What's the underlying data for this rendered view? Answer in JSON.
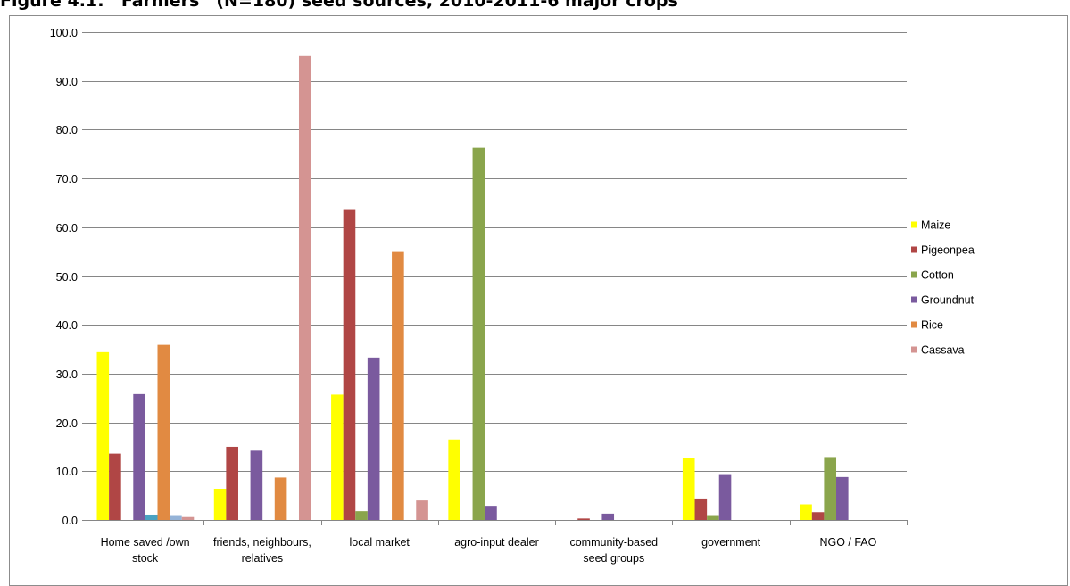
{
  "figure": {
    "title": "Figure 4.1: “Farmers” (N=180) seed sources, 2010-2011-6 major crops"
  },
  "chart_data": {
    "type": "bar",
    "categories": [
      [
        "Home saved /own",
        "stock"
      ],
      [
        "friends, neighbours,",
        "relatives"
      ],
      [
        "local market"
      ],
      [
        "agro-input dealer"
      ],
      [
        "community-based",
        "seed groups"
      ],
      [
        "government"
      ],
      [
        "NGO / FAO"
      ]
    ],
    "series": [
      {
        "name": "Maize",
        "color": "#ffff00",
        "values": [
          34.4,
          6.4,
          25.7,
          16.5,
          0.0,
          12.7,
          3.2
        ]
      },
      {
        "name": "Pigeonpea",
        "color": "#b04645",
        "values": [
          13.6,
          15.0,
          63.7,
          0.0,
          0.3,
          4.4,
          1.6
        ]
      },
      {
        "name": "Cotton",
        "color": "#8aa54c",
        "values": [
          0.0,
          0.0,
          1.8,
          76.3,
          0.0,
          1.0,
          12.9
        ]
      },
      {
        "name": "Groundnut",
        "color": "#7a5a9e",
        "values": [
          25.8,
          14.2,
          33.3,
          2.9,
          1.3,
          9.4,
          8.8
        ]
      },
      {
        "name": "",
        "color": "#4aa2c2",
        "values": [
          1.1,
          0,
          0,
          0,
          0,
          0,
          0
        ]
      },
      {
        "name": "Rice",
        "color": "#e18a42",
        "values": [
          35.9,
          8.7,
          55.1,
          0.0,
          0.0,
          0.0,
          0.0
        ]
      },
      {
        "name": "",
        "color": "#95b3d7",
        "values": [
          1.0,
          0,
          0,
          0,
          0,
          0,
          0
        ]
      },
      {
        "name": "Cassava",
        "color": "#d49492",
        "values": [
          0.6,
          95.1,
          4.0,
          0.0,
          0.0,
          0.0,
          0.0
        ]
      }
    ],
    "yticks": [
      "0.0",
      "10.0",
      "20.0",
      "30.0",
      "40.0",
      "50.0",
      "60.0",
      "70.0",
      "80.0",
      "90.0",
      "100.0"
    ],
    "ylim": [
      0,
      100
    ],
    "grid": true,
    "legend_position": "right"
  },
  "colors": {
    "gridline": "#868686",
    "axis": "#868686"
  }
}
